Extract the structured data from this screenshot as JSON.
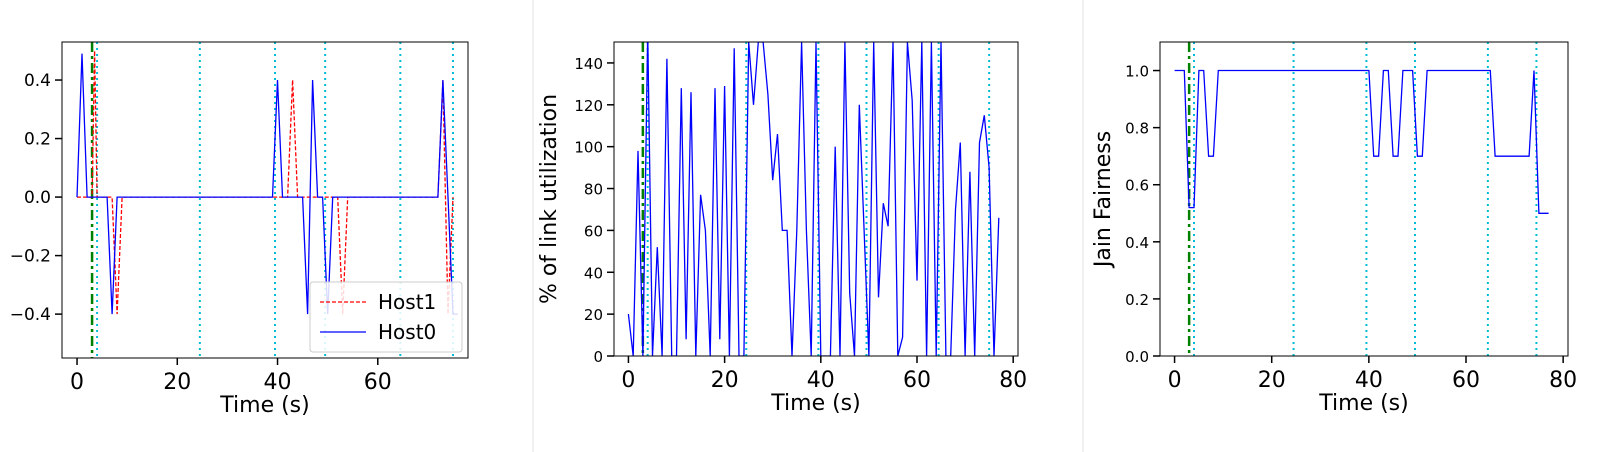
{
  "chart_data": [
    {
      "type": "line",
      "xlabel": "Time (s)",
      "ylabel": "",
      "xlim": [
        -3,
        78
      ],
      "ylim": [
        -0.55,
        0.53
      ],
      "xticks": [
        0,
        20,
        40,
        60
      ],
      "xtick_labels": [
        "0",
        "20",
        "40",
        "60"
      ],
      "yticks": [
        -0.4,
        -0.2,
        0.0,
        0.2,
        0.4
      ],
      "ytick_labels": [
        "−0.4",
        "−0.2",
        "0.0",
        "0.2",
        "0.4"
      ],
      "grid": false,
      "legend": "lower-right",
      "vlines_green": [
        3
      ],
      "vlines_cyan": [
        4,
        24.5,
        39.5,
        49.5,
        64.5,
        75
      ],
      "series": [
        {
          "name": "Host1",
          "color": "#ff0000",
          "style": "dashed",
          "x": [
            0,
            1,
            2,
            3,
            3.5,
            4,
            5,
            6,
            7,
            8,
            9,
            10,
            40,
            41,
            42,
            43,
            44,
            45,
            50,
            51,
            52,
            53,
            54,
            55,
            70,
            71,
            72,
            73,
            74,
            75
          ],
          "y": [
            0,
            0,
            0,
            0,
            0.5,
            0,
            0,
            0,
            0,
            -0.4,
            0,
            0,
            0,
            0,
            0,
            0.4,
            0,
            0,
            0,
            0,
            0,
            -0.4,
            0,
            0,
            0,
            0,
            0,
            0.4,
            -0.4,
            0
          ]
        },
        {
          "name": "Host0",
          "color": "#0000ff",
          "style": "solid",
          "x": [
            0,
            1,
            2,
            3,
            4,
            5,
            6,
            7,
            8,
            38,
            39,
            40,
            41,
            42,
            43,
            44,
            45,
            46,
            47,
            48,
            49,
            50,
            51,
            52,
            53,
            54,
            71,
            72,
            73,
            74,
            75,
            76
          ],
          "y": [
            0,
            0.49,
            0,
            0,
            0,
            0,
            0,
            -0.4,
            0,
            0,
            0,
            0.4,
            0,
            0,
            0,
            0,
            0,
            -0.4,
            0.4,
            0,
            0,
            -0.4,
            0,
            0,
            0,
            0,
            0,
            0,
            0.4,
            0,
            -0.4,
            -0.4
          ]
        }
      ]
    },
    {
      "type": "line",
      "xlabel": "Time (s)",
      "ylabel": "% of link utilization",
      "xlim": [
        -3,
        81
      ],
      "ylim": [
        0,
        150
      ],
      "xticks": [
        0,
        20,
        40,
        60,
        80
      ],
      "xtick_labels": [
        "0",
        "20",
        "40",
        "60",
        "80"
      ],
      "yticks": [
        0,
        20,
        40,
        60,
        80,
        100,
        120,
        140
      ],
      "ytick_labels": [
        "0",
        "20",
        "40",
        "60",
        "80",
        "100",
        "120",
        "140"
      ],
      "grid": false,
      "vlines_green": [
        3
      ],
      "vlines_cyan": [
        4,
        24.5,
        39.5,
        49.5,
        64.5,
        75
      ],
      "series": [
        {
          "name": "",
          "color": "#0000ff",
          "style": "solid",
          "x": [
            0,
            1,
            2,
            3,
            4,
            5,
            6,
            7,
            8,
            9,
            10,
            11,
            12,
            13,
            14,
            15,
            16,
            17,
            18,
            19,
            20,
            21,
            22,
            23,
            24,
            25,
            26,
            27,
            28,
            29,
            30,
            31,
            32,
            33,
            34,
            35,
            36,
            37,
            38,
            39,
            40,
            41,
            42,
            43,
            44,
            45,
            46,
            47,
            48,
            49,
            50,
            51,
            52,
            53,
            54,
            55,
            56,
            57,
            58,
            59,
            60,
            61,
            62,
            63,
            64,
            65,
            66,
            67,
            68,
            69,
            70,
            71,
            72,
            73,
            74,
            75,
            76,
            77
          ],
          "y": [
            20,
            0,
            98,
            0,
            155,
            0,
            52,
            0,
            142,
            0,
            0,
            128,
            8,
            126,
            0,
            77,
            60,
            0,
            128,
            8,
            129,
            0,
            147,
            0,
            0,
            150,
            120,
            150,
            150,
            125,
            84,
            106,
            60,
            60,
            0,
            60,
            150,
            60,
            0,
            150,
            0,
            0,
            0,
            100,
            0,
            150,
            30,
            0,
            120,
            60,
            0,
            150,
            28,
            73,
            62,
            150,
            0,
            9,
            150,
            122,
            36,
            150,
            0,
            150,
            0,
            150,
            0,
            0,
            70,
            102,
            0,
            88,
            0,
            102,
            115,
            90,
            0,
            66
          ]
        }
      ]
    },
    {
      "type": "line",
      "xlabel": "Time (s)",
      "ylabel": "Jain Fairness",
      "xlim": [
        -3,
        81
      ],
      "ylim": [
        0,
        1.1
      ],
      "xticks": [
        0,
        20,
        40,
        60,
        80
      ],
      "xtick_labels": [
        "0",
        "20",
        "40",
        "60",
        "80"
      ],
      "yticks": [
        0.0,
        0.2,
        0.4,
        0.6,
        0.8,
        1.0
      ],
      "ytick_labels": [
        "0.0",
        "0.2",
        "0.4",
        "0.6",
        "0.8",
        "1.0"
      ],
      "grid": false,
      "vlines_green": [
        3
      ],
      "vlines_cyan": [
        4,
        24.5,
        39.5,
        49.5,
        64.5,
        74.5
      ],
      "series": [
        {
          "name": "",
          "color": "#0000ff",
          "style": "solid",
          "x": [
            0,
            1,
            2,
            3,
            4,
            5,
            6,
            7,
            8,
            9,
            10,
            11,
            38,
            39,
            40,
            41,
            42,
            43,
            44,
            45,
            46,
            47,
            48,
            49,
            50,
            51,
            52,
            53,
            54,
            55,
            56,
            57,
            63,
            64,
            65,
            66,
            67,
            68,
            69,
            70,
            71,
            72,
            73,
            74,
            75,
            76,
            77
          ],
          "y": [
            1.0,
            1.0,
            1.0,
            0.52,
            0.52,
            1.0,
            1.0,
            0.7,
            0.7,
            1.0,
            1.0,
            1.0,
            1.0,
            1.0,
            1.0,
            0.7,
            0.7,
            1.0,
            1.0,
            0.7,
            0.7,
            1.0,
            1.0,
            1.0,
            0.7,
            0.7,
            1.0,
            1.0,
            1.0,
            1.0,
            1.0,
            1.0,
            1.0,
            1.0,
            1.0,
            0.7,
            0.7,
            0.7,
            0.7,
            0.7,
            0.7,
            0.7,
            0.7,
            1.0,
            0.5,
            0.5,
            0.5
          ]
        }
      ]
    }
  ]
}
